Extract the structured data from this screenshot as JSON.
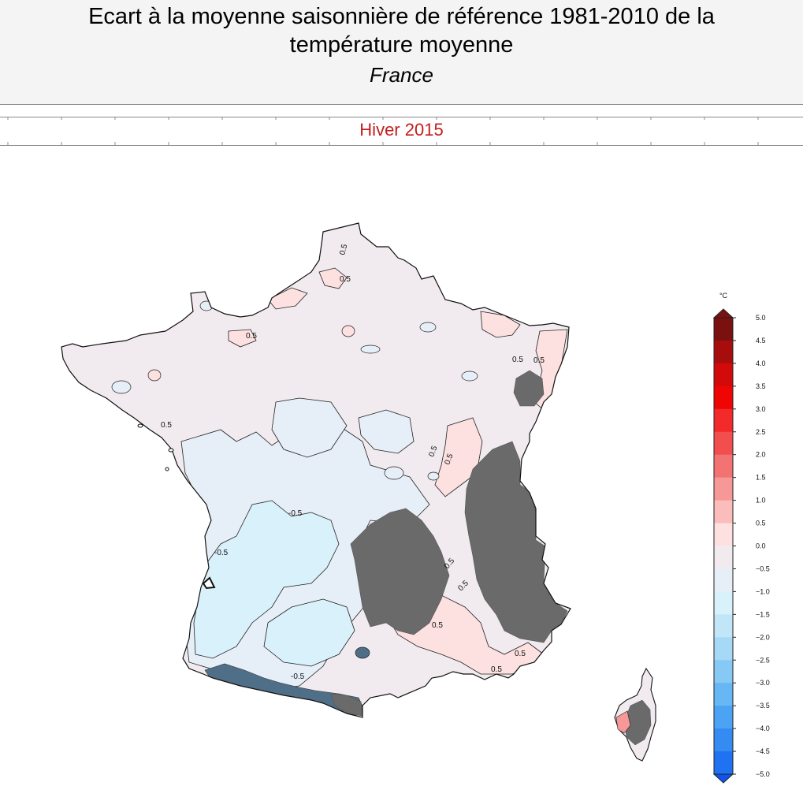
{
  "header": {
    "title_line1": "Ecart à la moyenne saisonnière de référence 1981-2010 de la",
    "title_line2": "température moyenne",
    "region": "France"
  },
  "season_label": "Hiver 2015",
  "legend": {
    "unit": "°C",
    "ticks": [
      "5.0",
      "4.5",
      "4.0",
      "3.5",
      "3.0",
      "2.5",
      "2.0",
      "1.5",
      "1.0",
      "0.5",
      "0.0",
      "−0.5",
      "−1.0",
      "−1.5",
      "−2.0",
      "−2.5",
      "−3.0",
      "−3.5",
      "−4.0",
      "−4.5",
      "−5.0"
    ],
    "colors": [
      "#7a1010",
      "#a80d0d",
      "#d30a0a",
      "#f00505",
      "#f22a2a",
      "#f24e4e",
      "#f37272",
      "#f79898",
      "#fbbcbc",
      "#fde0e0",
      "#f1ebef",
      "#e6eef7",
      "#d9f1fb",
      "#c1e6f8",
      "#a5d9f6",
      "#85c9f4",
      "#66b7f4",
      "#4ca3f3",
      "#348cf3",
      "#1f72f2",
      "#0e55f0"
    ]
  },
  "map": {
    "contour_labels": [
      "0.5",
      "0.5",
      "0.5",
      "0.5",
      "0.5",
      "0.5",
      "0.5",
      "0.5",
      "0.5",
      "0.5",
      "0.5",
      "-0.5",
      "-0.5",
      "-0.5",
      "0.5",
      "0.5"
    ],
    "colors": {
      "near_zero": "#f1ebef",
      "light_blue": "#e6eef7",
      "blue": "#d9f1fb",
      "pink": "#fde0e0",
      "mask": "#6a6a6a",
      "dark_blue": "#4f6f88"
    }
  }
}
